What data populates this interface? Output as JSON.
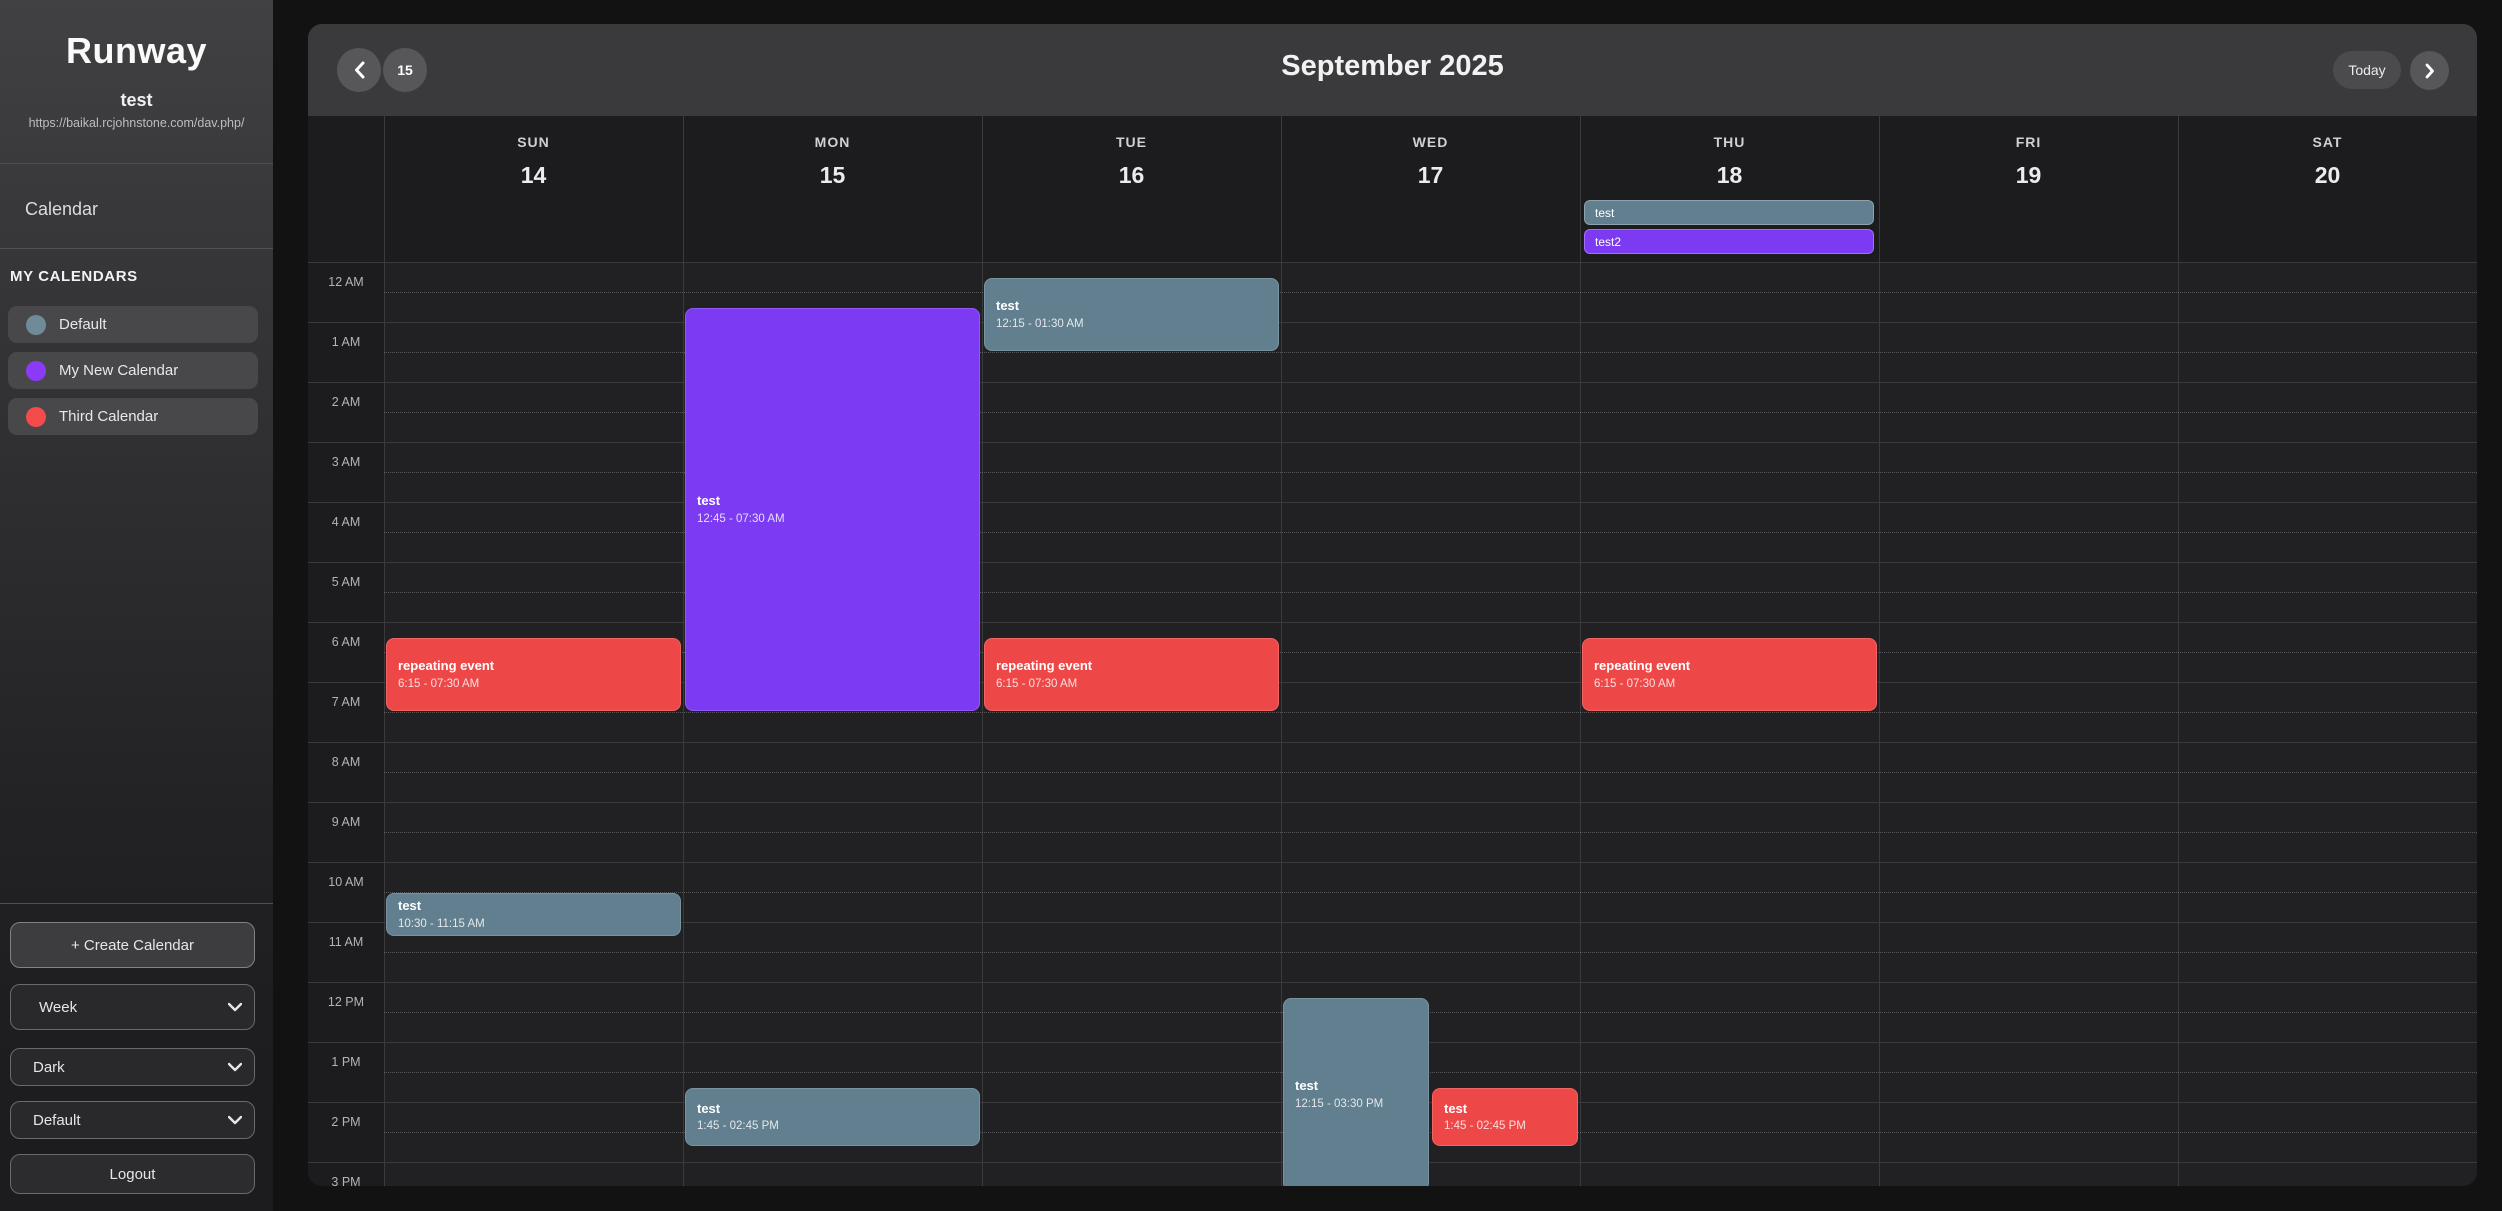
{
  "sidebar": {
    "app_title": "Runway",
    "username": "test",
    "server_url": "https://baikal.rcjohnstone.com/dav.php/",
    "nav_calendar_label": "Calendar",
    "my_calendars_heading": "MY CALENDARS",
    "calendars": [
      {
        "name": "Default",
        "color": "#6f8b99"
      },
      {
        "name": "My New Calendar",
        "color": "#8b3bf7"
      },
      {
        "name": "Third Calendar",
        "color": "#f44c4c"
      }
    ],
    "create_calendar_label": "+ Create Calendar",
    "view_select_value": "Week",
    "theme_select_value": "Dark",
    "calendar_select_value": "Default",
    "logout_label": "Logout"
  },
  "header": {
    "title": "September 2025",
    "date_badge": "15",
    "today_label": "Today"
  },
  "week": {
    "days": [
      {
        "name": "SUN",
        "date": "14"
      },
      {
        "name": "MON",
        "date": "15"
      },
      {
        "name": "TUE",
        "date": "16"
      },
      {
        "name": "WED",
        "date": "17"
      },
      {
        "name": "THU",
        "date": "18"
      },
      {
        "name": "FRI",
        "date": "19"
      },
      {
        "name": "SAT",
        "date": "20"
      }
    ],
    "hours": [
      "12 AM",
      "1 AM",
      "2 AM",
      "3 AM",
      "4 AM",
      "5 AM",
      "6 AM",
      "7 AM",
      "8 AM",
      "9 AM",
      "10 AM",
      "11 AM",
      "12 PM",
      "1 PM",
      "2 PM",
      "3 PM"
    ]
  },
  "all_day_events": [
    {
      "day": 4,
      "title": "test",
      "color": "slate"
    },
    {
      "day": 4,
      "title": "test2",
      "color": "purple"
    }
  ],
  "events": [
    {
      "day": 0,
      "title": "repeating event",
      "time_label": "6:15 - 07:30 AM",
      "start": 6.25,
      "end": 7.5,
      "color": "red"
    },
    {
      "day": 0,
      "title": "test",
      "time_label": "10:30 - 11:15 AM",
      "start": 10.5,
      "end": 11.25,
      "color": "slate"
    },
    {
      "day": 1,
      "title": "test",
      "time_label": "12:45 - 07:30 AM",
      "start": 0.75,
      "end": 7.5,
      "color": "purple"
    },
    {
      "day": 1,
      "title": "test",
      "time_label": "1:45 - 02:45 PM",
      "start": 13.75,
      "end": 14.75,
      "color": "slate"
    },
    {
      "day": 2,
      "title": "test",
      "time_label": "12:15 - 01:30 AM",
      "start": 0.25,
      "end": 1.5,
      "color": "slate"
    },
    {
      "day": 2,
      "title": "repeating event",
      "time_label": "6:15 - 07:30 AM",
      "start": 6.25,
      "end": 7.5,
      "color": "red"
    },
    {
      "day": 3,
      "title": "test",
      "time_label": "12:15 - 03:30 PM",
      "start": 12.25,
      "end": 15.5,
      "color": "slate",
      "half": "left"
    },
    {
      "day": 3,
      "title": "test",
      "time_label": "1:45 - 02:45 PM",
      "start": 13.75,
      "end": 14.75,
      "color": "red",
      "half": "right"
    },
    {
      "day": 4,
      "title": "repeating event",
      "time_label": "6:15 - 07:30 AM",
      "start": 6.25,
      "end": 7.5,
      "color": "red"
    }
  ],
  "colors": {
    "red": "#ee4747",
    "purple": "#7c3bf2",
    "slate": "#617f8e"
  }
}
